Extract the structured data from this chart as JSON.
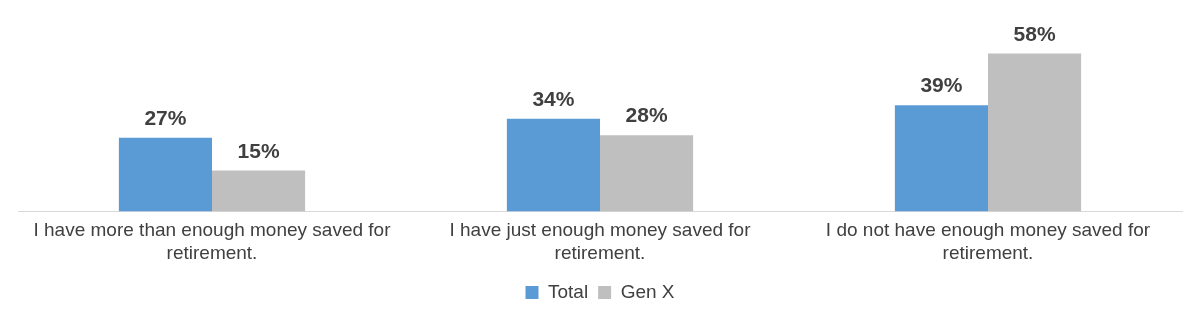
{
  "chart_data": {
    "type": "bar",
    "categories": [
      "I have more than enough money saved for retirement.",
      "I have just enough money saved for retirement.",
      "I do not have enough money saved for retirement."
    ],
    "series": [
      {
        "name": "Total",
        "color": "#5b9bd5",
        "values": [
          27,
          34,
          39
        ],
        "value_labels": [
          "27%",
          "34%",
          "39%"
        ]
      },
      {
        "name": "Gen X",
        "color": "#bfbfbf",
        "values": [
          15,
          28,
          58
        ],
        "value_labels": [
          "15%",
          "28%",
          "58%"
        ]
      }
    ],
    "legend": "bottom",
    "grid": false
  }
}
